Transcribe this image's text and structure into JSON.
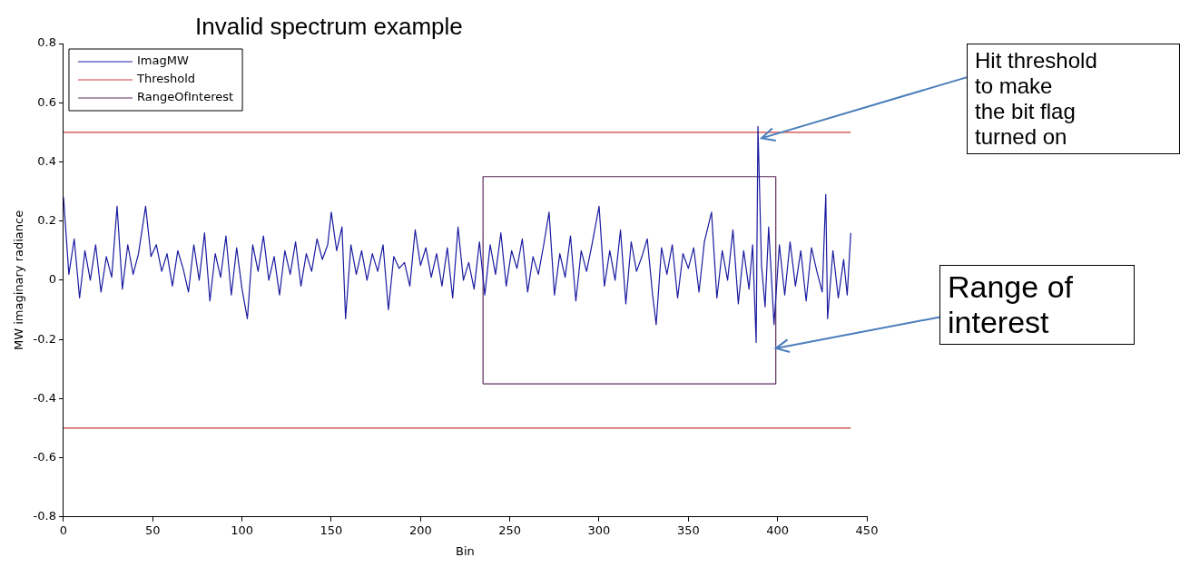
{
  "chart_data": {
    "type": "line",
    "title": "Invalid spectrum example",
    "xlabel": "Bin",
    "ylabel": "MW imaginary radiance",
    "xlim": [
      0,
      450
    ],
    "xticks": [
      0,
      50,
      100,
      150,
      200,
      250,
      300,
      350,
      400,
      450
    ],
    "ylim": [
      -0.8,
      0.8
    ],
    "yticks": [
      -0.8,
      -0.6,
      -0.4,
      -0.2,
      0,
      0.2,
      0.4,
      0.6,
      0.8
    ],
    "grid": false,
    "legend": "top left",
    "series": [
      {
        "name": "ImagMW",
        "color": "#1a1aa0",
        "x": [
          0,
          3,
          6,
          9,
          12,
          15,
          18,
          21,
          24,
          27,
          30,
          33,
          36,
          39,
          42,
          46,
          49,
          52,
          55,
          58,
          61,
          64,
          67,
          70,
          73,
          76,
          79,
          82,
          85,
          88,
          91,
          94,
          97,
          100,
          103,
          106,
          109,
          112,
          115,
          118,
          121,
          124,
          127,
          130,
          133,
          136,
          139,
          142,
          145,
          148,
          150,
          153,
          156,
          158,
          161,
          164,
          167,
          170,
          173,
          176,
          179,
          182,
          185,
          188,
          191,
          194,
          197,
          200,
          203,
          206,
          209,
          212,
          215,
          218,
          221,
          224,
          227,
          230,
          233,
          236,
          239,
          242,
          245,
          248,
          251,
          254,
          257,
          260,
          263,
          266,
          269,
          272,
          275,
          278,
          281,
          284,
          287,
          290,
          293,
          296,
          300,
          303,
          306,
          309,
          312,
          315,
          318,
          321,
          324,
          327,
          330,
          332,
          335,
          338,
          341,
          344,
          347,
          350,
          353,
          356,
          359,
          363,
          366,
          369,
          372,
          375,
          378,
          381,
          384,
          386,
          388,
          389,
          391,
          393,
          395,
          398,
          401,
          404,
          407,
          410,
          413,
          416,
          419,
          422,
          425,
          427,
          428,
          431,
          434,
          437,
          439,
          441
        ],
        "values": [
          0.28,
          0.02,
          0.14,
          -0.06,
          0.1,
          0.0,
          0.12,
          -0.04,
          0.08,
          0.01,
          0.25,
          -0.03,
          0.12,
          0.02,
          0.09,
          0.25,
          0.08,
          0.12,
          0.03,
          0.09,
          -0.02,
          0.1,
          0.04,
          -0.04,
          0.12,
          0.0,
          0.16,
          -0.07,
          0.09,
          0.01,
          0.15,
          -0.05,
          0.11,
          -0.03,
          -0.13,
          0.12,
          0.03,
          0.15,
          0.0,
          0.08,
          -0.05,
          0.1,
          0.02,
          0.13,
          -0.02,
          0.09,
          0.03,
          0.14,
          0.07,
          0.12,
          0.23,
          0.1,
          0.18,
          -0.13,
          0.12,
          0.02,
          0.1,
          0.0,
          0.09,
          0.03,
          0.12,
          -0.1,
          0.08,
          0.04,
          0.06,
          -0.02,
          0.17,
          0.05,
          0.11,
          0.01,
          0.09,
          -0.02,
          0.11,
          -0.06,
          0.18,
          0.0,
          0.06,
          -0.03,
          0.13,
          -0.05,
          0.12,
          0.02,
          0.16,
          -0.02,
          0.1,
          0.04,
          0.14,
          -0.04,
          0.08,
          0.02,
          0.12,
          0.23,
          -0.05,
          0.09,
          0.01,
          0.15,
          -0.07,
          0.1,
          0.03,
          0.12,
          0.25,
          -0.02,
          0.1,
          0.0,
          0.17,
          -0.08,
          0.13,
          0.03,
          0.08,
          0.14,
          -0.05,
          -0.15,
          0.11,
          0.02,
          0.12,
          -0.06,
          0.09,
          0.04,
          0.11,
          -0.04,
          0.13,
          0.23,
          -0.06,
          0.1,
          0.0,
          0.17,
          -0.08,
          0.1,
          -0.03,
          0.12,
          -0.21,
          0.52,
          0.05,
          -0.09,
          0.18,
          -0.15,
          0.12,
          -0.05,
          0.13,
          -0.02,
          0.1,
          -0.07,
          0.11,
          0.03,
          -0.04,
          0.29,
          -0.13,
          0.1,
          -0.06,
          0.07,
          -0.05,
          0.16
        ]
      },
      {
        "name": "Threshold",
        "color": "#cc3b3b",
        "x": [
          0,
          441
        ],
        "values": [
          0.5,
          0.5
        ]
      },
      {
        "color": "#cc3b3b",
        "x": [
          0,
          441
        ],
        "values": [
          -0.5,
          -0.5
        ]
      },
      {
        "name": "RangeOfInterest",
        "color": "#5e2c5e",
        "x": [
          235,
          235,
          399,
          399
        ],
        "values": [
          -0.35,
          0.35,
          0.35,
          -0.35
        ]
      },
      {
        "color": "#5e2c5e",
        "x": [
          235,
          399
        ],
        "values": [
          -0.35,
          -0.35
        ]
      }
    ],
    "annotations": [
      {
        "text": "Hit threshold\nto make\nthe bit flag\nturned on",
        "x": 391,
        "y": 0.48
      },
      {
        "text": "Range of\ninterest",
        "x": 399,
        "y": -0.23
      }
    ]
  }
}
